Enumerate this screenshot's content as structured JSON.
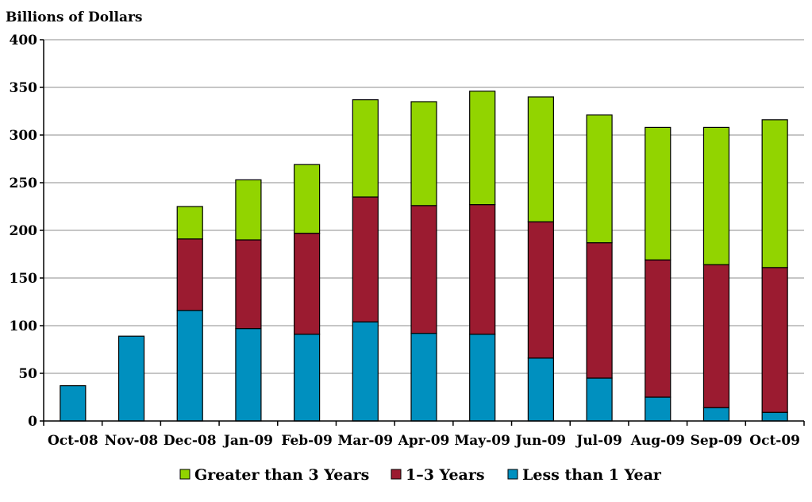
{
  "chart_data": {
    "type": "bar",
    "stacked": true,
    "ylabel": "Billions of Dollars",
    "xlabel": "",
    "ylim": [
      0,
      400
    ],
    "yticks": [
      0,
      50,
      100,
      150,
      200,
      250,
      300,
      350,
      400
    ],
    "grid": true,
    "legend_position": "bottom",
    "categories": [
      "Oct-08",
      "Nov-08",
      "Dec-08",
      "Jan-09",
      "Feb-09",
      "Mar-09",
      "Apr-09",
      "May-09",
      "Jun-09",
      "Jul-09",
      "Aug-09",
      "Sep-09",
      "Oct-09"
    ],
    "series": [
      {
        "name": "Less than 1 Year",
        "color": "#0090BF",
        "values": [
          37,
          89,
          116,
          97,
          91,
          104,
          92,
          91,
          66,
          45,
          25,
          14,
          9
        ]
      },
      {
        "name": "1–3 Years",
        "color": "#9B1B30",
        "values": [
          0,
          0,
          75,
          93,
          106,
          131,
          134,
          136,
          143,
          142,
          144,
          150,
          152
        ]
      },
      {
        "name": "Greater than 3 Years",
        "color": "#92D400",
        "values": [
          0,
          0,
          34,
          63,
          72,
          102,
          109,
          119,
          131,
          134,
          139,
          144,
          155
        ]
      }
    ],
    "legend_order": [
      "Greater than 3 Years",
      "1–3 Years",
      "Less than 1 Year"
    ]
  }
}
